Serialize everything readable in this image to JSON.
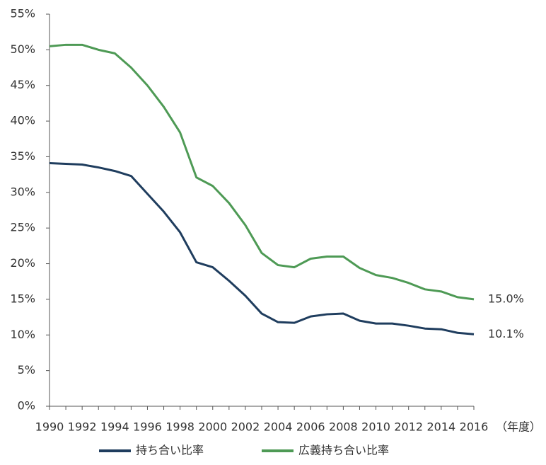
{
  "chart_data": {
    "type": "line",
    "x_label": "（年度）",
    "x": [
      1990,
      1991,
      1992,
      1993,
      1994,
      1995,
      1996,
      1997,
      1998,
      1999,
      2000,
      2001,
      2002,
      2003,
      2004,
      2005,
      2006,
      2007,
      2008,
      2009,
      2010,
      2011,
      2012,
      2013,
      2014,
      2015,
      2016
    ],
    "xlim": [
      1990,
      2016
    ],
    "xticks": [
      1990,
      1992,
      1994,
      1996,
      1998,
      2000,
      2002,
      2004,
      2006,
      2008,
      2010,
      2012,
      2014,
      2016
    ],
    "ylim": [
      0,
      55
    ],
    "yticks": [
      {
        "value": 0,
        "label": "0%"
      },
      {
        "value": 5,
        "label": "5%"
      },
      {
        "value": 10,
        "label": "10%"
      },
      {
        "value": 15,
        "label": "15%"
      },
      {
        "value": 20,
        "label": "20%"
      },
      {
        "value": 25,
        "label": "25%"
      },
      {
        "value": 30,
        "label": "30%"
      },
      {
        "value": 35,
        "label": "35%"
      },
      {
        "value": 40,
        "label": "40%"
      },
      {
        "value": 45,
        "label": "45%"
      },
      {
        "value": 50,
        "label": "50%"
      },
      {
        "value": 55,
        "label": "55%"
      }
    ],
    "series": [
      {
        "name": "持ち合い比率",
        "color": "#1f3d5e",
        "values": [
          34.1,
          34.0,
          33.9,
          33.5,
          33.0,
          32.3,
          29.8,
          27.3,
          24.4,
          20.2,
          19.5,
          17.6,
          15.5,
          13.0,
          11.8,
          11.7,
          12.6,
          12.9,
          13.0,
          12.0,
          11.6,
          11.6,
          11.3,
          10.9,
          10.8,
          10.3,
          10.1
        ],
        "value_labels": [
          null,
          null,
          null,
          null,
          null,
          null,
          null,
          null,
          null,
          null,
          null,
          null,
          null,
          null,
          null,
          null,
          null,
          null,
          null,
          null,
          null,
          null,
          null,
          null,
          null,
          null,
          "10.1%"
        ]
      },
      {
        "name": "広義持ち合い比率",
        "color": "#4e9a55",
        "values": [
          50.5,
          50.7,
          50.7,
          50.0,
          49.5,
          47.5,
          45.0,
          42.0,
          38.4,
          32.1,
          30.9,
          28.5,
          25.4,
          21.5,
          19.8,
          19.5,
          20.7,
          21.0,
          21.0,
          19.4,
          18.4,
          18.0,
          17.3,
          16.4,
          16.1,
          15.3,
          15.0
        ],
        "value_labels": [
          null,
          null,
          null,
          null,
          null,
          null,
          null,
          null,
          null,
          null,
          null,
          null,
          null,
          null,
          null,
          null,
          null,
          null,
          null,
          null,
          null,
          null,
          null,
          null,
          null,
          null,
          "15.0%"
        ]
      }
    ]
  }
}
